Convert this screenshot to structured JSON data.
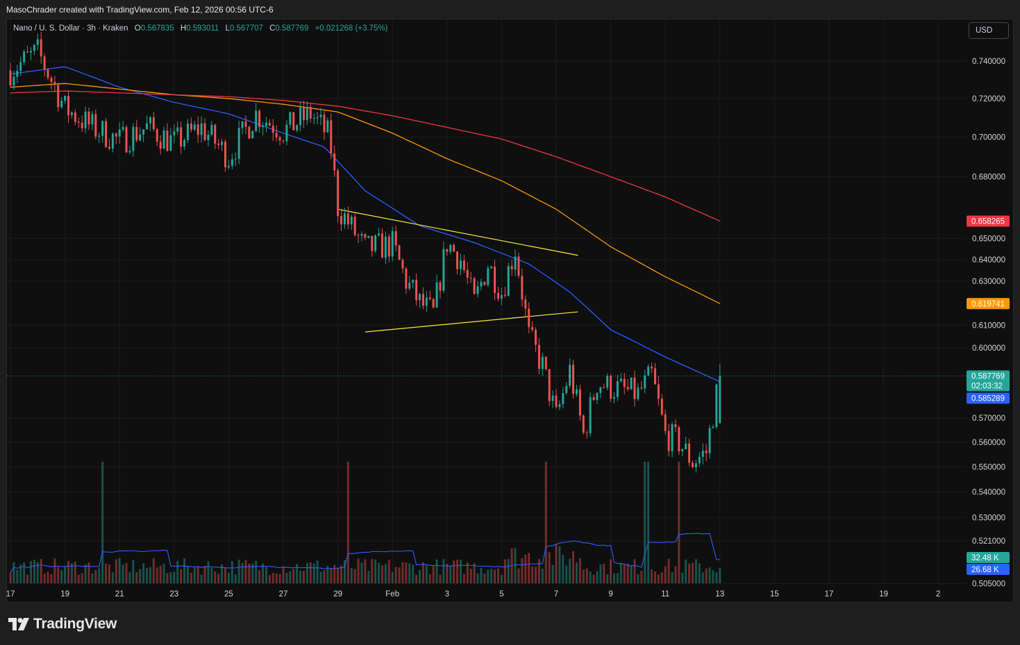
{
  "header": {
    "attribution": "MasoChrader created with TradingView.com, Feb 12, 2026 00:56 UTC-6"
  },
  "legend": {
    "symbol": "Nano / U. S. Dollar · 3h · Kraken",
    "open_label": "O",
    "open_value": "0.567835",
    "high_label": "H",
    "high_value": "0.593011",
    "low_label": "L",
    "low_value": "0.567707",
    "close_label": "C",
    "close_value": "0.587769",
    "change": "+0.021268 (+3.75%)"
  },
  "currency_button": "USD",
  "footer": {
    "brand": "TradingView"
  },
  "colors": {
    "up": "#26a69a",
    "down": "#ef5350",
    "ma_blue": "#2962ff",
    "ma_orange": "#ff9800",
    "ma_red": "#f23645",
    "trendline": "#ffeb3b",
    "background": "#0f0f0f",
    "grid": "#1c1c1c"
  },
  "chart_data": {
    "type": "candlestick",
    "title": "Nano / U. S. Dollar · 3h · Kraken",
    "x_range": [
      "Jan 17",
      "Feb 22"
    ],
    "ylim": [
      0.505,
      0.752
    ],
    "y_scale": "log",
    "grid": true,
    "y_ticks": [
      "0.740000",
      "0.720000",
      "0.700000",
      "0.680000",
      "0.650000",
      "0.640000",
      "0.630000",
      "0.610000",
      "0.600000",
      "0.570000",
      "0.560000",
      "0.550000",
      "0.540000",
      "0.530000",
      "0.521000",
      "0.505000"
    ],
    "x_ticks": [
      "17",
      "19",
      "21",
      "23",
      "25",
      "27",
      "29",
      "Feb",
      "3",
      "5",
      "7",
      "9",
      "11",
      "13",
      "15",
      "17",
      "19",
      "2"
    ],
    "price_path": [
      [
        "Jan 17",
        0.735
      ],
      [
        "Jan 18",
        0.745
      ],
      [
        "Jan 19",
        0.715
      ],
      [
        "Jan 20",
        0.705
      ],
      [
        "Jan 21",
        0.698
      ],
      [
        "Jan 22",
        0.705
      ],
      [
        "Jan 23",
        0.697
      ],
      [
        "Jan 24",
        0.705
      ],
      [
        "Jan 25",
        0.69
      ],
      [
        "Jan 26",
        0.712
      ],
      [
        "Jan 27",
        0.703
      ],
      [
        "Jan 28",
        0.712
      ],
      [
        "Jan 28.7",
        0.7
      ],
      [
        "Jan 29",
        0.665
      ],
      [
        "Jan 29.5",
        0.655
      ],
      [
        "Jan 30",
        0.645
      ],
      [
        "Jan 31",
        0.647
      ],
      [
        "Jan 31.5",
        0.63
      ],
      [
        "Feb 1",
        0.62
      ],
      [
        "Feb 1.5",
        0.615
      ],
      [
        "Feb 2",
        0.648
      ],
      [
        "Feb 2.5",
        0.64
      ],
      [
        "Feb 3",
        0.62
      ],
      [
        "Feb 3.5",
        0.638
      ],
      [
        "Feb 4",
        0.625
      ],
      [
        "Feb 4.5",
        0.645
      ],
      [
        "Feb 5",
        0.605
      ],
      [
        "Feb 5.5",
        0.592
      ],
      [
        "Feb 6",
        0.57
      ],
      [
        "Feb 6.5",
        0.59
      ],
      [
        "Feb 7",
        0.563
      ],
      [
        "Feb 7.5",
        0.585
      ],
      [
        "Feb 8",
        0.583
      ],
      [
        "Feb 9",
        0.58
      ],
      [
        "Feb 9.5",
        0.588
      ],
      [
        "Feb 10",
        0.563
      ],
      [
        "Feb 10.5",
        0.56
      ],
      [
        "Feb 11",
        0.552
      ],
      [
        "Feb 11.5",
        0.556
      ],
      [
        "Feb 12",
        0.587769
      ]
    ],
    "moving_averages": [
      {
        "color": "#2962ff",
        "last_value": "0.585289",
        "points": [
          [
            "Jan 17",
            0.733
          ],
          [
            "Jan 19",
            0.737
          ],
          [
            "Jan 21",
            0.726
          ],
          [
            "Jan 23",
            0.718
          ],
          [
            "Jan 25",
            0.712
          ],
          [
            "Jan 27",
            0.702
          ],
          [
            "Jan 28.5",
            0.695
          ],
          [
            "Jan 30",
            0.673
          ],
          [
            "Feb 1",
            0.656
          ],
          [
            "Feb 3",
            0.648
          ],
          [
            "Feb 5",
            0.638
          ],
          [
            "Feb 6.5",
            0.625
          ],
          [
            "Feb 8",
            0.608
          ],
          [
            "Feb 10",
            0.596
          ],
          [
            "Feb 12",
            0.585289
          ]
        ]
      },
      {
        "color": "#ff9800",
        "last_value": "0.619741",
        "points": [
          [
            "Jan 17",
            0.726
          ],
          [
            "Jan 19",
            0.728
          ],
          [
            "Jan 21",
            0.725
          ],
          [
            "Jan 23",
            0.722
          ],
          [
            "Jan 25",
            0.72
          ],
          [
            "Jan 27",
            0.717
          ],
          [
            "Jan 29",
            0.713
          ],
          [
            "Jan 31",
            0.702
          ],
          [
            "Feb 2",
            0.689
          ],
          [
            "Feb 4",
            0.678
          ],
          [
            "Feb 6",
            0.664
          ],
          [
            "Feb 8",
            0.646
          ],
          [
            "Feb 10",
            0.632
          ],
          [
            "Feb 12",
            0.619741
          ]
        ]
      },
      {
        "color": "#f23645",
        "last_value": "0.658265",
        "points": [
          [
            "Jan 17",
            0.723
          ],
          [
            "Jan 19",
            0.724
          ],
          [
            "Jan 21",
            0.723
          ],
          [
            "Jan 23",
            0.722
          ],
          [
            "Jan 25",
            0.721
          ],
          [
            "Jan 27",
            0.719
          ],
          [
            "Jan 29",
            0.716
          ],
          [
            "Jan 31",
            0.711
          ],
          [
            "Feb 2",
            0.705
          ],
          [
            "Feb 4",
            0.699
          ],
          [
            "Feb 6",
            0.69
          ],
          [
            "Feb 8",
            0.68
          ],
          [
            "Feb 10",
            0.67
          ],
          [
            "Feb 12",
            0.658265
          ]
        ]
      }
    ],
    "trendlines": [
      {
        "color": "#ffeb3b",
        "from": [
          "Jan 29",
          0.664
        ],
        "to": [
          "Feb 6.8",
          0.642
        ]
      },
      {
        "color": "#ffeb3b",
        "from": [
          "Jan 30",
          0.607
        ],
        "to": [
          "Feb 6.8",
          0.616
        ]
      }
    ],
    "price_labels": [
      {
        "value": "0.658265",
        "color": "#f23645"
      },
      {
        "value": "0.619741",
        "color": "#ff9800"
      },
      {
        "value": "0.587769",
        "sub": "02:03:32",
        "color": "#26a69a"
      },
      {
        "value": "0.585289",
        "color": "#2962ff"
      }
    ],
    "volume": {
      "last_value": "32.48 K",
      "last_color": "#26a69a",
      "ma_value": "26.68 K",
      "ma_color": "#2962ff",
      "spikes": [
        [
          "Jan 20.4",
          3.3
        ],
        [
          "Jan 29.4",
          2.9
        ],
        [
          "Feb 5.6",
          3.6
        ],
        [
          "Feb 9.3",
          2.8
        ],
        [
          "Feb 10.5",
          1.8
        ]
      ]
    }
  }
}
